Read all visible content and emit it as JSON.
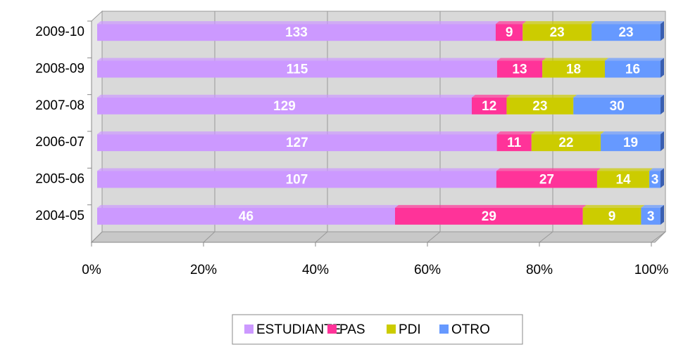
{
  "chart_data": {
    "type": "bar_stacked_percent_horizontal",
    "categories": [
      "2009-10",
      "2008-09",
      "2007-08",
      "2006-07",
      "2005-06",
      "2004-05"
    ],
    "series": [
      {
        "name": "ESTUDIANTE",
        "color": "#cc99ff",
        "values": [
          133,
          115,
          129,
          127,
          107,
          46
        ]
      },
      {
        "name": "PAS",
        "color": "#ff3399",
        "values": [
          9,
          13,
          12,
          11,
          27,
          29
        ]
      },
      {
        "name": "PDI",
        "color": "#cccc00",
        "values": [
          23,
          18,
          23,
          22,
          14,
          9
        ]
      },
      {
        "name": "OTRO",
        "color": "#6699ff",
        "values": [
          23,
          16,
          30,
          19,
          3,
          3
        ]
      }
    ],
    "xlim": [
      0,
      100
    ],
    "xticks": [
      {
        "value": 0,
        "label": "0%"
      },
      {
        "value": 20,
        "label": "20%"
      },
      {
        "value": 40,
        "label": "40%"
      },
      {
        "value": 60,
        "label": "60%"
      },
      {
        "value": 80,
        "label": "80%"
      },
      {
        "value": 100,
        "label": "100%"
      }
    ],
    "grid": true,
    "legend": "bottom"
  }
}
